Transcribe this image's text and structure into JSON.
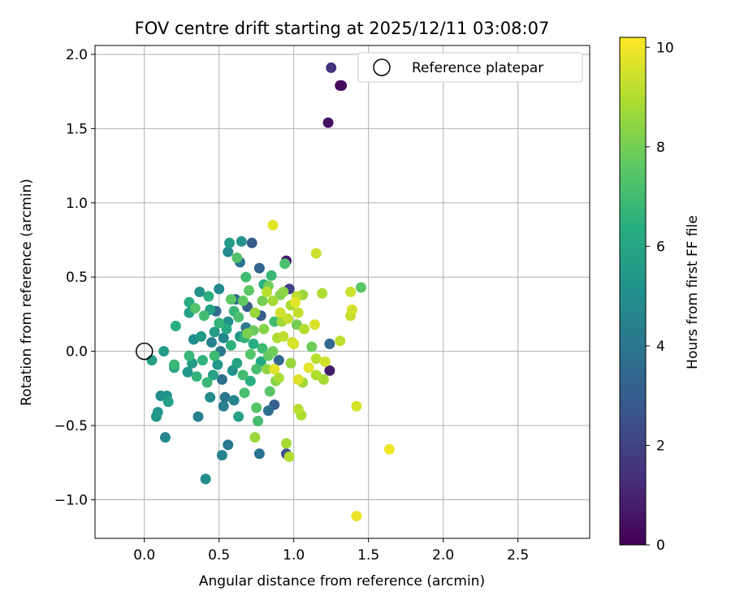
{
  "chart_data": {
    "type": "scatter",
    "title": "FOV centre drift starting at 2025/12/11 03:08:07",
    "xlabel": "Angular distance from reference (arcmin)",
    "ylabel": "Rotation from reference (arcmin)",
    "xlim": [
      -0.33,
      2.98
    ],
    "ylim": [
      -1.26,
      2.06
    ],
    "xticks": [
      0.0,
      0.5,
      1.0,
      1.5,
      2.0,
      2.5
    ],
    "xtick_labels": [
      "0.0",
      "0.5",
      "1.0",
      "1.5",
      "2.0",
      "2.5"
    ],
    "yticks": [
      -1.0,
      -0.5,
      0.0,
      0.5,
      1.0,
      1.5,
      2.0
    ],
    "ytick_labels": [
      "−1.0",
      "−0.5",
      "0.0",
      "0.5",
      "1.0",
      "1.5",
      "2.0"
    ],
    "grid": true,
    "legend": {
      "position": "top-right",
      "label": "Reference platepar"
    },
    "reference_point": {
      "x": 0.0,
      "y": 0.0
    },
    "colorbar": {
      "label": "Hours from first FF file",
      "range": [
        0,
        10.2
      ],
      "ticks": [
        0,
        2,
        4,
        6,
        8,
        10
      ],
      "tick_labels": [
        "0",
        "2",
        "4",
        "6",
        "8",
        "10"
      ],
      "colormap": "viridis"
    },
    "points": [
      [
        1.25,
        1.91,
        1.5
      ],
      [
        1.31,
        1.79,
        0.1
      ],
      [
        1.32,
        1.79,
        0.3
      ],
      [
        1.23,
        1.54,
        0.5
      ],
      [
        0.86,
        0.85,
        9.8
      ],
      [
        1.42,
        -1.11,
        9.9
      ],
      [
        1.64,
        -0.66,
        10.0
      ],
      [
        1.42,
        -0.37,
        9.6
      ],
      [
        1.45,
        0.43,
        7.5
      ],
      [
        1.38,
        0.4,
        9.4
      ],
      [
        1.39,
        0.28,
        9.5
      ],
      [
        1.38,
        0.24,
        9.3
      ],
      [
        1.31,
        0.07,
        9.2
      ],
      [
        1.15,
        0.66,
        9.4
      ],
      [
        1.19,
        0.39,
        8.9
      ],
      [
        1.24,
        0.05,
        3.5
      ],
      [
        1.24,
        -0.13,
        0.8
      ],
      [
        1.21,
        -0.07,
        9.5
      ],
      [
        1.2,
        -0.19,
        8.8
      ],
      [
        1.15,
        -0.05,
        9.1
      ],
      [
        1.15,
        -0.16,
        9.0
      ],
      [
        1.12,
        0.03,
        7.9
      ],
      [
        1.14,
        0.18,
        9.6
      ],
      [
        1.1,
        -0.11,
        9.8
      ],
      [
        1.07,
        0.15,
        9.0
      ],
      [
        1.06,
        0.38,
        8.6
      ],
      [
        1.06,
        -0.21,
        8.7
      ],
      [
        1.05,
        -0.43,
        8.9
      ],
      [
        1.03,
        -0.39,
        9.1
      ],
      [
        1.03,
        -0.19,
        9.7
      ],
      [
        1.03,
        0.26,
        9.3
      ],
      [
        1.02,
        0.37,
        9.2
      ],
      [
        1.01,
        0.33,
        9.8
      ],
      [
        0.99,
        0.06,
        9.4
      ],
      [
        0.98,
        -0.08,
        8.6
      ],
      [
        0.97,
        -0.71,
        9.0
      ],
      [
        0.95,
        -0.69,
        2.6
      ],
      [
        0.95,
        -0.62,
        8.8
      ],
      [
        0.95,
        0.61,
        0.8
      ],
      [
        0.94,
        0.59,
        7.2
      ],
      [
        0.93,
        0.4,
        8.4
      ],
      [
        0.97,
        0.42,
        2.0
      ],
      [
        0.93,
        0.1,
        9.2
      ],
      [
        0.92,
        0.2,
        8.7
      ],
      [
        0.91,
        0.26,
        9.5
      ],
      [
        0.9,
        -0.06,
        3.4
      ],
      [
        0.9,
        -0.18,
        8.9
      ],
      [
        0.88,
        -0.2,
        8.3
      ],
      [
        0.87,
        -0.12,
        9.7
      ],
      [
        0.87,
        -0.36,
        3.1
      ],
      [
        0.86,
        0.34,
        8.8
      ],
      [
        0.85,
        0.51,
        6.8
      ],
      [
        0.84,
        -0.27,
        7.5
      ],
      [
        0.83,
        -0.4,
        3.7
      ],
      [
        0.83,
        0.44,
        7.9
      ],
      [
        0.82,
        0.4,
        9.1
      ],
      [
        0.8,
        0.45,
        6.4
      ],
      [
        0.79,
        0.34,
        8.0
      ],
      [
        0.78,
        0.24,
        2.9
      ],
      [
        0.78,
        -0.07,
        6.1
      ],
      [
        0.77,
        0.56,
        3.3
      ],
      [
        0.77,
        -0.69,
        3.8
      ],
      [
        0.76,
        -0.47,
        7.1
      ],
      [
        0.75,
        -0.38,
        7.4
      ],
      [
        0.74,
        -0.58,
        8.6
      ],
      [
        0.73,
        0.14,
        7.8
      ],
      [
        0.72,
        0.73,
        2.9
      ],
      [
        0.7,
        0.41,
        7.6
      ],
      [
        0.69,
        0.3,
        3.1
      ],
      [
        0.68,
        0.5,
        7.0
      ],
      [
        0.67,
        0.09,
        6.6
      ],
      [
        0.66,
        -0.16,
        7.0
      ],
      [
        0.65,
        0.74,
        5.2
      ],
      [
        0.64,
        0.6,
        3.9
      ],
      [
        0.63,
        -0.44,
        5.8
      ],
      [
        0.62,
        0.63,
        7.3
      ],
      [
        0.61,
        0.35,
        3.4
      ],
      [
        0.6,
        -0.33,
        4.6
      ],
      [
        0.59,
        -0.13,
        5.1
      ],
      [
        0.58,
        0.35,
        7.6
      ],
      [
        0.57,
        0.73,
        5.6
      ],
      [
        0.56,
        0.67,
        4.8
      ],
      [
        0.56,
        -0.63,
        4.1
      ],
      [
        0.55,
        0.15,
        6.2
      ],
      [
        0.54,
        -0.31,
        3.9
      ],
      [
        0.53,
        -0.37,
        4.3
      ],
      [
        0.52,
        -0.19,
        3.7
      ],
      [
        0.52,
        -0.7,
        4.5
      ],
      [
        0.51,
        0.0,
        4.2
      ],
      [
        0.5,
        0.42,
        4.7
      ],
      [
        0.49,
        -0.09,
        5.3
      ],
      [
        0.48,
        0.27,
        3.6
      ],
      [
        0.47,
        0.13,
        5.6
      ],
      [
        0.46,
        -0.16,
        5.9
      ],
      [
        0.45,
        0.06,
        4.4
      ],
      [
        0.44,
        -0.31,
        4.9
      ],
      [
        0.43,
        0.37,
        6.4
      ],
      [
        0.42,
        -0.21,
        6.8
      ],
      [
        0.41,
        -0.86,
        5.0
      ],
      [
        0.4,
        0.24,
        7.0
      ],
      [
        0.39,
        -0.06,
        6.6
      ],
      [
        0.37,
        0.4,
        5.2
      ],
      [
        0.36,
        -0.44,
        4.4
      ],
      [
        0.35,
        -0.17,
        6.6
      ],
      [
        0.34,
        0.29,
        7.3
      ],
      [
        0.33,
        0.08,
        4.9
      ],
      [
        0.32,
        -0.08,
        5.5
      ],
      [
        0.3,
        0.33,
        6.3
      ],
      [
        0.3,
        0.26,
        5.8
      ],
      [
        0.3,
        -0.03,
        6.8
      ],
      [
        0.29,
        -0.14,
        5.3
      ],
      [
        0.21,
        0.17,
        6.4
      ],
      [
        0.2,
        -0.09,
        6.8
      ],
      [
        0.2,
        -0.11,
        5.9
      ],
      [
        0.16,
        -0.34,
        5.7
      ],
      [
        0.15,
        -0.3,
        5.1
      ],
      [
        0.14,
        -0.58,
        4.7
      ],
      [
        0.13,
        0.0,
        5.6
      ],
      [
        0.11,
        -0.3,
        4.9
      ],
      [
        0.09,
        -0.41,
        5.3
      ],
      [
        0.08,
        -0.44,
        5.4
      ],
      [
        0.05,
        -0.06,
        5.7
      ],
      [
        0.63,
        0.23,
        7.2
      ],
      [
        0.69,
        0.12,
        8.1
      ],
      [
        0.74,
        0.26,
        8.6
      ],
      [
        0.8,
        0.15,
        8.3
      ],
      [
        0.82,
        -0.12,
        8.4
      ],
      [
        0.86,
        0.0,
        7.9
      ],
      [
        0.89,
        0.09,
        8.9
      ],
      [
        0.91,
        0.38,
        8.2
      ],
      [
        0.96,
        0.22,
        9.3
      ],
      [
        0.98,
        0.31,
        8.9
      ],
      [
        1.0,
        0.05,
        9.6
      ],
      [
        1.02,
        0.18,
        8.0
      ],
      [
        0.71,
        -0.02,
        7.4
      ],
      [
        0.73,
        0.05,
        6.3
      ],
      [
        0.75,
        -0.12,
        7.1
      ],
      [
        0.79,
        0.02,
        6.9
      ],
      [
        0.83,
        -0.03,
        7.7
      ],
      [
        0.87,
        0.2,
        7.0
      ],
      [
        0.64,
        0.1,
        5.4
      ],
      [
        0.62,
        -0.08,
        6.0
      ],
      [
        0.58,
        0.04,
        6.5
      ],
      [
        0.56,
        0.2,
        5.0
      ],
      [
        0.53,
        0.09,
        4.6
      ],
      [
        0.6,
        0.27,
        6.8
      ],
      [
        0.66,
        0.34,
        7.6
      ],
      [
        0.68,
        0.16,
        4.1
      ],
      [
        0.71,
        -0.2,
        6.4
      ],
      [
        0.67,
        -0.28,
        7.1
      ],
      [
        0.44,
        0.28,
        5.8
      ],
      [
        0.47,
        -0.03,
        6.9
      ],
      [
        0.5,
        0.19,
        6.7
      ],
      [
        0.38,
        0.1,
        5.5
      ]
    ]
  }
}
